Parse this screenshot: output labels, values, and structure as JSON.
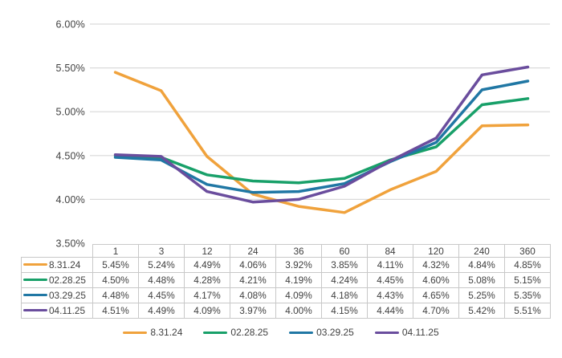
{
  "chart_data": {
    "type": "line",
    "title": "",
    "xlabel": "",
    "ylabel": "",
    "categories": [
      "1",
      "3",
      "12",
      "24",
      "36",
      "60",
      "84",
      "120",
      "240",
      "360"
    ],
    "series": [
      {
        "name": "8.31.24",
        "color": "#F0A23C",
        "values": [
          5.45,
          5.24,
          4.49,
          4.06,
          3.92,
          3.85,
          4.11,
          4.32,
          4.84,
          4.85
        ]
      },
      {
        "name": "02.28.25",
        "color": "#18A069",
        "values": [
          4.5,
          4.48,
          4.28,
          4.21,
          4.19,
          4.24,
          4.45,
          4.6,
          5.08,
          5.15
        ]
      },
      {
        "name": "03.29.25",
        "color": "#2077A4",
        "values": [
          4.48,
          4.45,
          4.17,
          4.08,
          4.09,
          4.18,
          4.43,
          4.65,
          5.25,
          5.35
        ]
      },
      {
        "name": "04.11.25",
        "color": "#6A4D9D",
        "values": [
          4.51,
          4.49,
          4.09,
          3.97,
          4.0,
          4.15,
          4.44,
          4.7,
          5.42,
          5.51
        ]
      }
    ],
    "y_axis": {
      "min": 3.5,
      "max": 6.0,
      "step": 0.5,
      "tick_labels": [
        "6.00%",
        "5.50%",
        "5.00%",
        "4.50%",
        "4.00%",
        "3.50%"
      ]
    },
    "grid": true,
    "legend_position": "bottom"
  },
  "table": {
    "header": [
      "1",
      "3",
      "12",
      "24",
      "36",
      "60",
      "84",
      "120",
      "240",
      "360"
    ],
    "rows": [
      {
        "label": "8.31.24",
        "color": "#F0A23C",
        "values": [
          "5.45%",
          "5.24%",
          "4.49%",
          "4.06%",
          "3.92%",
          "3.85%",
          "4.11%",
          "4.32%",
          "4.84%",
          "4.85%"
        ]
      },
      {
        "label": "02.28.25",
        "color": "#18A069",
        "values": [
          "4.50%",
          "4.48%",
          "4.28%",
          "4.21%",
          "4.19%",
          "4.24%",
          "4.45%",
          "4.60%",
          "5.08%",
          "5.15%"
        ]
      },
      {
        "label": "03.29.25",
        "color": "#2077A4",
        "values": [
          "4.48%",
          "4.45%",
          "4.17%",
          "4.08%",
          "4.09%",
          "4.18%",
          "4.43%",
          "4.65%",
          "5.25%",
          "5.35%"
        ]
      },
      {
        "label": "04.11.25",
        "color": "#6A4D9D",
        "values": [
          "4.51%",
          "4.49%",
          "4.09%",
          "3.97%",
          "4.00%",
          "4.15%",
          "4.44%",
          "4.70%",
          "5.42%",
          "5.51%"
        ]
      }
    ]
  },
  "legend": {
    "items": [
      {
        "label": "8.31.24",
        "color": "#F0A23C"
      },
      {
        "label": "02.28.25",
        "color": "#18A069"
      },
      {
        "label": "03.29.25",
        "color": "#2077A4"
      },
      {
        "label": "04.11.25",
        "color": "#6A4D9D"
      }
    ]
  },
  "colors": {
    "grid": "#D9D9D9",
    "table_border": "#C8C8C8",
    "text": "#404040",
    "background": "#FFFFFF"
  }
}
